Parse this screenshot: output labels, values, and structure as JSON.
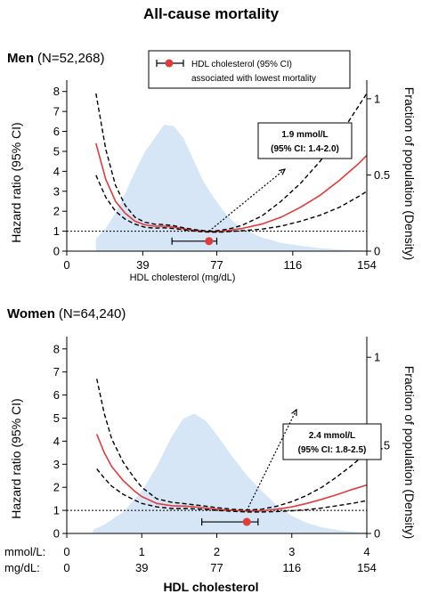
{
  "figure": {
    "title": "All-cause mortality",
    "bottom_xlabel": "HDL cholesterol",
    "mmol_row_label": "mmol/L:",
    "mgdl_row_label": "mg/dL:",
    "mmol_ticks": [
      "0",
      "1",
      "2",
      "3",
      "4"
    ],
    "mgdl_ticks": [
      "0",
      "39",
      "77",
      "116",
      "154"
    ]
  },
  "legend": {
    "label_line1": "HDL cholesterol (95% CI)",
    "label_line2": "associated with lowest mortality"
  },
  "colors": {
    "estimate": "#e03c3c",
    "ci": "#000000",
    "density": "#cfe2f5",
    "reference": "#000000",
    "marker": "#e03c3c"
  },
  "chart_data": [
    {
      "type": "line",
      "panel_label": "Men",
      "panel_n": "(N=52,268)",
      "xlabel": "HDL cholesterol (mg/dL)",
      "ylabel": "Hazard ratio (95% CI)",
      "y2label": "Fraction of population (Density)",
      "xlim": [
        0,
        154
      ],
      "ylim": [
        0,
        8.3
      ],
      "y2lim": [
        0,
        1
      ],
      "xticks": [
        "0",
        "39",
        "77",
        "116",
        "154"
      ],
      "yticks": [
        "0",
        "1",
        "2",
        "3",
        "4",
        "5",
        "6",
        "7",
        "8"
      ],
      "y2ticks": [
        "0",
        "0.5",
        "1"
      ],
      "reference_line": 1,
      "annotation": {
        "line1": "1.9 mmol/L",
        "line2": "(95% CI: 1.4-2.0)"
      },
      "optimum": {
        "value": 73,
        "ci": [
          54,
          77
        ]
      },
      "density": {
        "x": [
          15,
          20,
          25,
          30,
          35,
          40,
          45,
          50,
          55,
          60,
          65,
          70,
          75,
          80,
          85,
          90,
          100,
          110,
          120,
          130,
          140,
          150,
          154
        ],
        "y": [
          0.08,
          0.15,
          0.25,
          0.38,
          0.52,
          0.65,
          0.74,
          0.83,
          0.82,
          0.74,
          0.6,
          0.46,
          0.36,
          0.27,
          0.2,
          0.15,
          0.09,
          0.055,
          0.035,
          0.02,
          0.01,
          0.004,
          0.002
        ]
      },
      "series": [
        {
          "name": "Hazard ratio",
          "x": [
            15,
            20,
            25,
            30,
            35,
            40,
            45,
            50,
            55,
            60,
            65,
            70,
            75,
            80,
            85,
            90,
            100,
            110,
            120,
            130,
            140,
            150,
            154
          ],
          "values": [
            5.4,
            3.6,
            2.5,
            1.9,
            1.5,
            1.32,
            1.25,
            1.25,
            1.2,
            1.12,
            1.05,
            1.0,
            0.97,
            1.0,
            1.06,
            1.14,
            1.35,
            1.7,
            2.2,
            2.8,
            3.55,
            4.4,
            4.8
          ]
        },
        {
          "name": "Upper 95% CI",
          "x": [
            15,
            20,
            25,
            30,
            35,
            40,
            45,
            50,
            55,
            60,
            65,
            70,
            75,
            80,
            85,
            90,
            100,
            110,
            120,
            130,
            140,
            150,
            154
          ],
          "values": [
            7.9,
            5.1,
            3.3,
            2.3,
            1.7,
            1.45,
            1.35,
            1.33,
            1.27,
            1.17,
            1.09,
            1.03,
            1.0,
            1.06,
            1.15,
            1.3,
            1.75,
            2.5,
            3.4,
            4.5,
            5.8,
            7.3,
            7.9
          ]
        },
        {
          "name": "Lower 95% CI",
          "x": [
            15,
            20,
            25,
            30,
            35,
            40,
            45,
            50,
            55,
            60,
            65,
            70,
            75,
            80,
            85,
            90,
            100,
            110,
            120,
            130,
            140,
            150,
            154
          ],
          "values": [
            3.8,
            2.7,
            2.0,
            1.6,
            1.35,
            1.2,
            1.15,
            1.17,
            1.13,
            1.07,
            1.01,
            0.97,
            0.95,
            0.96,
            0.99,
            1.02,
            1.1,
            1.25,
            1.5,
            1.8,
            2.2,
            2.75,
            3.0
          ]
        }
      ]
    },
    {
      "type": "line",
      "panel_label": "Women",
      "panel_n": "(N=64,240)",
      "xlabel": "",
      "ylabel": "Hazard ratio (95% CI)",
      "y2label": "Fraction of population (Density)",
      "xlim": [
        0,
        4
      ],
      "ylim": [
        0,
        8.3
      ],
      "y2lim": [
        0,
        1
      ],
      "xticks": [],
      "yticks": [
        "0",
        "1",
        "2",
        "3",
        "4",
        "5",
        "6",
        "7",
        "8"
      ],
      "y2ticks": [
        "0",
        "0.5",
        "1"
      ],
      "reference_line": 1,
      "annotation": {
        "line1": "2.4 mmol/L",
        "line2": "(95% CI: 1.8-2.5)"
      },
      "optimum": {
        "value": 2.4,
        "ci": [
          1.8,
          2.55
        ]
      },
      "density": {
        "x": [
          0.35,
          0.5,
          0.75,
          1.0,
          1.2,
          1.4,
          1.55,
          1.7,
          1.85,
          2.0,
          2.2,
          2.4,
          2.6,
          2.8,
          3.0,
          3.2,
          3.4,
          3.6,
          3.8,
          4.0
        ],
        "y": [
          0.02,
          0.05,
          0.12,
          0.24,
          0.38,
          0.55,
          0.65,
          0.68,
          0.64,
          0.56,
          0.44,
          0.33,
          0.24,
          0.16,
          0.1,
          0.06,
          0.035,
          0.02,
          0.01,
          0.005
        ]
      },
      "series": [
        {
          "name": "Hazard ratio",
          "x": [
            0.4,
            0.5,
            0.6,
            0.75,
            0.9,
            1.0,
            1.2,
            1.4,
            1.6,
            1.8,
            2.0,
            2.2,
            2.4,
            2.6,
            2.8,
            3.0,
            3.2,
            3.4,
            3.6,
            3.8,
            4.0
          ],
          "values": [
            4.3,
            3.5,
            2.9,
            2.3,
            1.85,
            1.6,
            1.3,
            1.2,
            1.18,
            1.12,
            1.05,
            1.0,
            0.97,
            0.98,
            1.05,
            1.15,
            1.3,
            1.48,
            1.68,
            1.9,
            2.1
          ]
        },
        {
          "name": "Upper 95% CI",
          "x": [
            0.4,
            0.5,
            0.6,
            0.75,
            0.9,
            1.0,
            1.2,
            1.4,
            1.6,
            1.8,
            2.0,
            2.2,
            2.4,
            2.6,
            2.8,
            3.0,
            3.2,
            3.4,
            3.6,
            3.8,
            4.0
          ],
          "values": [
            6.7,
            5.2,
            4.1,
            3.1,
            2.4,
            2.0,
            1.5,
            1.35,
            1.28,
            1.2,
            1.12,
            1.05,
            1.02,
            1.05,
            1.18,
            1.38,
            1.65,
            2.0,
            2.45,
            2.95,
            3.5
          ]
        },
        {
          "name": "Lower 95% CI",
          "x": [
            0.4,
            0.5,
            0.6,
            0.75,
            0.9,
            1.0,
            1.2,
            1.4,
            1.6,
            1.8,
            2.0,
            2.2,
            2.4,
            2.6,
            2.8,
            3.0,
            3.2,
            3.4,
            3.6,
            3.8,
            4.0
          ],
          "values": [
            2.8,
            2.4,
            2.05,
            1.7,
            1.45,
            1.3,
            1.15,
            1.08,
            1.08,
            1.05,
            1.0,
            0.96,
            0.93,
            0.93,
            0.95,
            0.98,
            1.03,
            1.1,
            1.2,
            1.3,
            1.42
          ]
        }
      ]
    }
  ]
}
